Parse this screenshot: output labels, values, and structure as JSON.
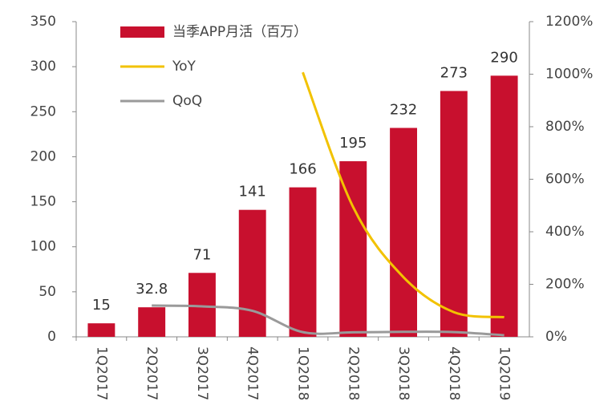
{
  "chart_data": {
    "type": "bar",
    "categories": [
      "1Q2017",
      "2Q2017",
      "3Q2017",
      "4Q2017",
      "1Q2018",
      "2Q2018",
      "3Q2018",
      "4Q2018",
      "1Q2019"
    ],
    "series": [
      {
        "name": "当季APP月活（百万）",
        "type": "bar",
        "color": "#c8102e",
        "values": [
          15,
          32.8,
          71,
          141,
          166,
          195,
          232,
          273,
          290
        ]
      },
      {
        "name": "YoY",
        "type": "line",
        "axis": "y2",
        "color": "#f2c200",
        "values": [
          null,
          null,
          null,
          null,
          1007,
          494,
          227,
          94,
          75
        ]
      },
      {
        "name": "QoQ",
        "type": "line",
        "axis": "y2",
        "color": "#9a9a9a",
        "values": [
          null,
          119,
          116,
          99,
          18,
          17,
          19,
          18,
          6
        ]
      }
    ],
    "ylim": [
      0,
      350
    ],
    "yticks": [
      0,
      50,
      100,
      150,
      200,
      250,
      300,
      350
    ],
    "y2lim": [
      0,
      1200
    ],
    "y2ticks": [
      {
        "value": 0,
        "label": "0%"
      },
      {
        "value": 200,
        "label": "200%"
      },
      {
        "value": 400,
        "label": "400%"
      },
      {
        "value": 600,
        "label": "600%"
      },
      {
        "value": 800,
        "label": "800%"
      },
      {
        "value": 1000,
        "label": "1000%"
      },
      {
        "value": 1200,
        "label": "1200%"
      }
    ]
  }
}
